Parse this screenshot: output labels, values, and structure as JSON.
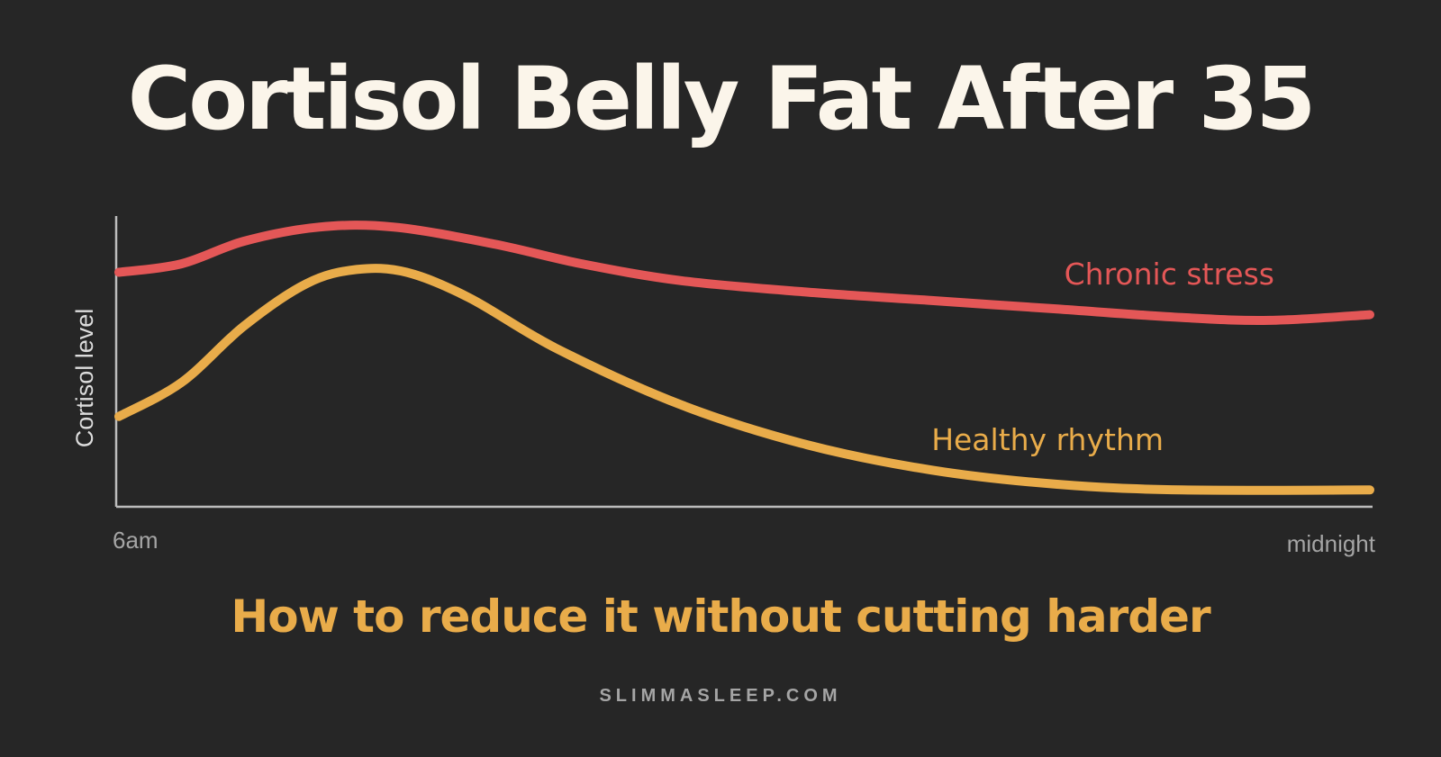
{
  "title": "Cortisol Belly Fat After 35",
  "subtitle": "How to reduce it without cutting harder",
  "footer": "SLIMMASLEEP.COM",
  "colors": {
    "background": "#262626",
    "title": "#fbf5ea",
    "accent": "#e9ac4a",
    "chronic": "#e45757",
    "healthy": "#e9ac4a",
    "axis": "#bdbdbd",
    "muted": "#a5a5a5"
  },
  "chart_data": {
    "type": "line",
    "ylabel": "Cortisol level",
    "xlabel": "",
    "x_tick_labels": [
      "6am",
      "midnight"
    ],
    "xlim": [
      0,
      1
    ],
    "ylim": [
      0,
      1
    ],
    "grid": false,
    "series": [
      {
        "name": "Chronic stress",
        "color": "#e45757",
        "points": [
          [
            0,
            0.82
          ],
          [
            0.05,
            0.85
          ],
          [
            0.1,
            0.93
          ],
          [
            0.16,
            0.98
          ],
          [
            0.22,
            0.98
          ],
          [
            0.3,
            0.92
          ],
          [
            0.37,
            0.85
          ],
          [
            0.45,
            0.79
          ],
          [
            0.55,
            0.75
          ],
          [
            0.65,
            0.72
          ],
          [
            0.75,
            0.69
          ],
          [
            0.85,
            0.66
          ],
          [
            0.92,
            0.65
          ],
          [
            1.0,
            0.67
          ]
        ]
      },
      {
        "name": "Healthy rhythm",
        "color": "#e9ac4a",
        "points": [
          [
            0,
            0.31
          ],
          [
            0.05,
            0.43
          ],
          [
            0.1,
            0.63
          ],
          [
            0.15,
            0.78
          ],
          [
            0.19,
            0.83
          ],
          [
            0.23,
            0.82
          ],
          [
            0.28,
            0.73
          ],
          [
            0.35,
            0.55
          ],
          [
            0.45,
            0.35
          ],
          [
            0.55,
            0.21
          ],
          [
            0.65,
            0.12
          ],
          [
            0.75,
            0.07
          ],
          [
            0.85,
            0.05
          ],
          [
            1.0,
            0.05
          ]
        ]
      }
    ]
  }
}
